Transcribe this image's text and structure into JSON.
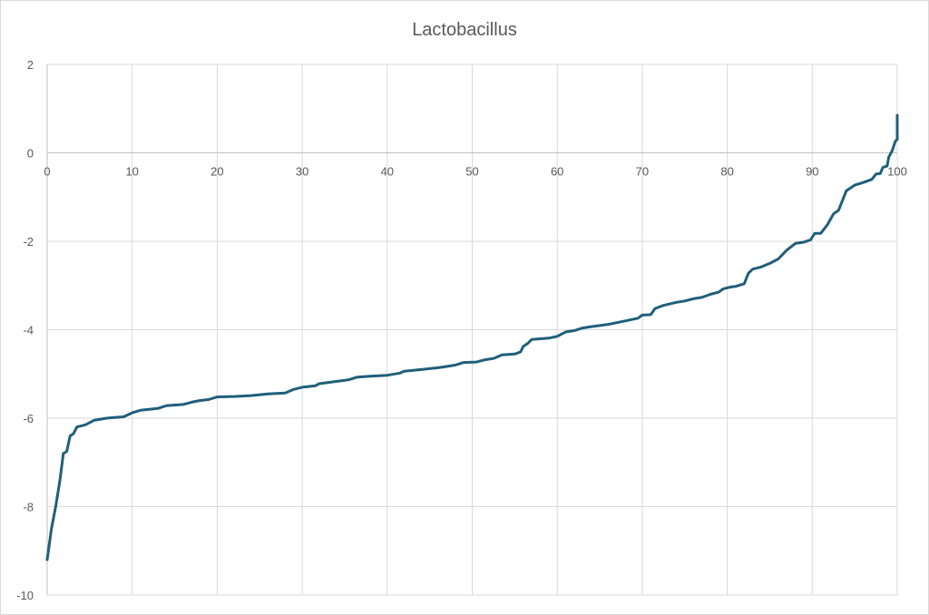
{
  "chart_data": {
    "type": "line",
    "title": "Lactobacillus",
    "xlabel": "",
    "ylabel": "",
    "xlim": [
      0,
      100
    ],
    "ylim": [
      -10,
      2
    ],
    "x_ticks": [
      0,
      10,
      20,
      30,
      40,
      50,
      60,
      70,
      80,
      90,
      100
    ],
    "y_ticks": [
      2,
      0,
      -2,
      -4,
      -6,
      -8,
      -10
    ],
    "x_tick_labels": [
      "0",
      "10",
      "20",
      "30",
      "40",
      "50",
      "60",
      "70",
      "80",
      "90",
      "100"
    ],
    "y_tick_labels": [
      "2",
      "0",
      "-2",
      "-4",
      "-6",
      "-8",
      "-10"
    ],
    "grid": true,
    "legend": "none",
    "line_color": "#1f5f7a",
    "series": [
      {
        "points": [
          [
            0,
            -9.2
          ],
          [
            0.5,
            -8.5
          ],
          [
            1,
            -8.0
          ],
          [
            1.5,
            -7.4
          ],
          [
            1.9,
            -6.8
          ],
          [
            2.3,
            -6.75
          ],
          [
            2.7,
            -6.4
          ],
          [
            3.1,
            -6.35
          ],
          [
            3.5,
            -6.2
          ],
          [
            4.5,
            -6.15
          ],
          [
            5.5,
            -6.05
          ],
          [
            7,
            -6.0
          ],
          [
            9,
            -5.97
          ],
          [
            10,
            -5.88
          ],
          [
            11,
            -5.82
          ],
          [
            13,
            -5.78
          ],
          [
            14,
            -5.72
          ],
          [
            16,
            -5.69
          ],
          [
            17,
            -5.64
          ],
          [
            18,
            -5.6
          ],
          [
            19,
            -5.58
          ],
          [
            20,
            -5.52
          ],
          [
            22,
            -5.51
          ],
          [
            24,
            -5.49
          ],
          [
            26,
            -5.45
          ],
          [
            28,
            -5.43
          ],
          [
            29,
            -5.35
          ],
          [
            30,
            -5.3
          ],
          [
            31.5,
            -5.27
          ],
          [
            32,
            -5.22
          ],
          [
            34,
            -5.17
          ],
          [
            35.5,
            -5.13
          ],
          [
            36.5,
            -5.07
          ],
          [
            38,
            -5.05
          ],
          [
            40,
            -5.03
          ],
          [
            41.5,
            -4.98
          ],
          [
            42,
            -4.94
          ],
          [
            44,
            -4.9
          ],
          [
            46,
            -4.86
          ],
          [
            47,
            -4.83
          ],
          [
            48,
            -4.8
          ],
          [
            49,
            -4.74
          ],
          [
            50.5,
            -4.73
          ],
          [
            51.5,
            -4.68
          ],
          [
            52.5,
            -4.65
          ],
          [
            53.5,
            -4.57
          ],
          [
            55,
            -4.55
          ],
          [
            55.7,
            -4.5
          ],
          [
            56,
            -4.38
          ],
          [
            56.6,
            -4.3
          ],
          [
            57,
            -4.22
          ],
          [
            59,
            -4.19
          ],
          [
            60,
            -4.15
          ],
          [
            61,
            -4.05
          ],
          [
            62,
            -4.02
          ],
          [
            63,
            -3.96
          ],
          [
            64,
            -3.93
          ],
          [
            66,
            -3.88
          ],
          [
            68,
            -3.8
          ],
          [
            69.5,
            -3.74
          ],
          [
            70,
            -3.67
          ],
          [
            71,
            -3.66
          ],
          [
            71.5,
            -3.52
          ],
          [
            72.5,
            -3.45
          ],
          [
            74,
            -3.38
          ],
          [
            75,
            -3.35
          ],
          [
            76,
            -3.3
          ],
          [
            77,
            -3.27
          ],
          [
            78,
            -3.2
          ],
          [
            79,
            -3.15
          ],
          [
            79.5,
            -3.08
          ],
          [
            80.5,
            -3.03
          ],
          [
            81,
            -3.02
          ],
          [
            82,
            -2.96
          ],
          [
            82.5,
            -2.72
          ],
          [
            83,
            -2.63
          ],
          [
            84,
            -2.58
          ],
          [
            85,
            -2.5
          ],
          [
            86,
            -2.4
          ],
          [
            87,
            -2.2
          ],
          [
            88,
            -2.05
          ],
          [
            89,
            -2.02
          ],
          [
            89.8,
            -1.97
          ],
          [
            90.3,
            -1.82
          ],
          [
            91,
            -1.82
          ],
          [
            91.8,
            -1.62
          ],
          [
            92.5,
            -1.38
          ],
          [
            93.1,
            -1.3
          ],
          [
            94,
            -0.86
          ],
          [
            95,
            -0.73
          ],
          [
            96,
            -0.67
          ],
          [
            97,
            -0.6
          ],
          [
            97.5,
            -0.48
          ],
          [
            98,
            -0.47
          ],
          [
            98.3,
            -0.33
          ],
          [
            98.8,
            -0.3
          ],
          [
            99,
            -0.1
          ],
          [
            99.4,
            0.05
          ],
          [
            99.8,
            0.27
          ],
          [
            100,
            0.3
          ],
          [
            100.4,
            0.35
          ],
          [
            100.8,
            0.5
          ],
          [
            101,
            0.85
          ]
        ]
      }
    ]
  }
}
